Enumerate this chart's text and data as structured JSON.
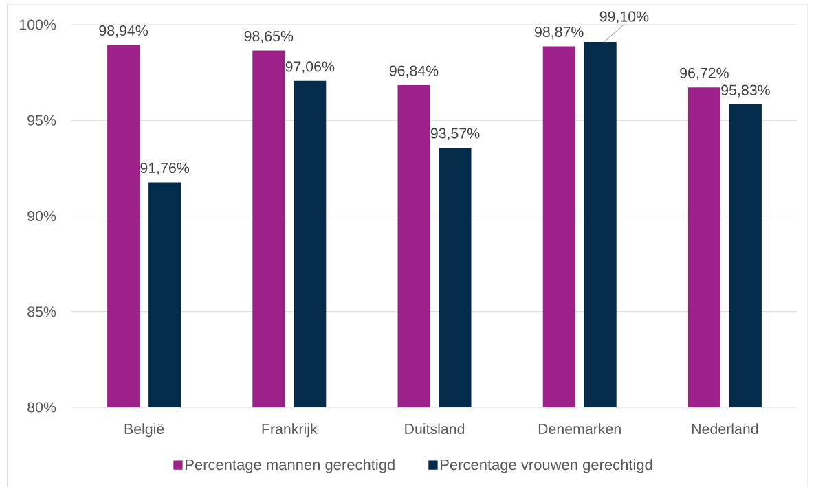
{
  "chart_data": {
    "type": "bar",
    "categories": [
      "België",
      "Frankrijk",
      "Duitsland",
      "Denemarken",
      "Nederland"
    ],
    "series": [
      {
        "name": "Percentage mannen gerechtigd",
        "color": "#9c2289",
        "values": [
          98.94,
          98.65,
          96.84,
          98.87,
          96.72
        ],
        "value_labels": [
          "98,94%",
          "98,65%",
          "96,84%",
          "98,87%",
          "96,72%"
        ]
      },
      {
        "name": "Percentage vrouwen gerechtigd",
        "color": "#022c4a",
        "values": [
          91.76,
          97.06,
          93.57,
          99.1,
          95.83
        ],
        "value_labels": [
          "91,76%",
          "97,06%",
          "93,57%",
          "99,10%",
          "95,83%"
        ]
      }
    ],
    "ylim": [
      80,
      100
    ],
    "yticks": [
      {
        "value": 80,
        "label": "80%"
      },
      {
        "value": 85,
        "label": "85%"
      },
      {
        "value": 90,
        "label": "90%"
      },
      {
        "value": 95,
        "label": "95%"
      },
      {
        "value": 100,
        "label": "100%"
      }
    ],
    "grid": "y",
    "legend": "bottom"
  }
}
